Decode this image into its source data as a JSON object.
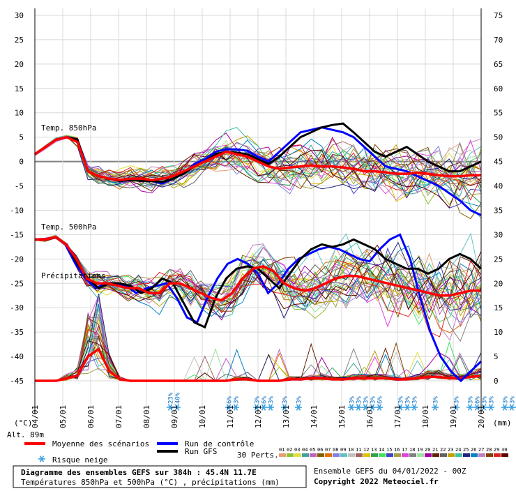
{
  "chart_data": {
    "type": "line",
    "left_axis_ticks": [
      30,
      25,
      20,
      15,
      10,
      5,
      0,
      -5,
      -10,
      -15,
      -20,
      -25,
      -30,
      -35,
      -40,
      -45
    ],
    "right_axis_ticks": [
      75,
      70,
      65,
      60,
      55,
      50,
      45,
      40,
      35,
      30,
      25,
      20,
      15,
      10,
      5,
      0
    ],
    "left_unit": "(°C)",
    "right_unit": "(mm)",
    "left_ylim": [
      -45,
      30
    ],
    "right_ylim": [
      0,
      75
    ],
    "x_dates": [
      "04/01",
      "05/01",
      "06/01",
      "07/01",
      "08/01",
      "09/01",
      "10/01",
      "11/01",
      "12/01",
      "13/01",
      "14/01",
      "15/01",
      "16/01",
      "17/01",
      "18/01",
      "19/01",
      "20/01"
    ],
    "panel_labels": {
      "t850": "Temp. 850hPa",
      "t500": "Temp. 500hPa",
      "precip": "Précipitations"
    },
    "t850_mean": [
      1.5,
      3,
      4.5,
      5,
      4,
      -2,
      -3,
      -3.5,
      -3.8,
      -3.5,
      -3.5,
      -3.8,
      -3.5,
      -3,
      -2,
      -1,
      0,
      1,
      2,
      1.5,
      1,
      0,
      -1,
      -1.5,
      -1.2,
      -1,
      -0.8,
      -1,
      -1,
      -1.2,
      -1.5,
      -2,
      -2,
      -2.2,
      -2.5,
      -2.5,
      -2.3,
      -2.5,
      -2.8,
      -3,
      -3,
      -2.8,
      -2.8
    ],
    "t850_control": [
      1.5,
      3,
      4.5,
      5,
      4.5,
      -2,
      -3,
      -3.5,
      -4,
      -3.8,
      -3.5,
      -4,
      -4.5,
      -3.5,
      -2.5,
      -0.5,
      0.5,
      2,
      2.5,
      2.5,
      2.2,
      1,
      0,
      2,
      4,
      6,
      6.5,
      7,
      6.5,
      6,
      5,
      3,
      1,
      -1,
      -1.5,
      -2,
      -3,
      -4,
      -5,
      -6.5,
      -8,
      -10,
      -11
    ],
    "t850_gfs": [
      1.5,
      3,
      4.5,
      5,
      4.5,
      -2,
      -3,
      -3.5,
      -4,
      -3.8,
      -4,
      -4,
      -4.2,
      -3.5,
      -2.5,
      -1,
      0,
      1.5,
      2,
      1.8,
      1.5,
      0.5,
      -0.5,
      1,
      3,
      5,
      6,
      7,
      7.5,
      7.8,
      6,
      4,
      2,
      1,
      2,
      3,
      1.5,
      0,
      -1,
      -2,
      -2,
      -1,
      0
    ],
    "t500_mean": [
      -16,
      -16,
      -15.5,
      -17,
      -20,
      -24,
      -25,
      -25,
      -25.5,
      -26,
      -26,
      -27,
      -27,
      -25,
      -25,
      -26,
      -27,
      -28,
      -28.5,
      -27,
      -24,
      -22,
      -21.5,
      -22.5,
      -25,
      -26,
      -26.5,
      -26,
      -25,
      -24,
      -23.5,
      -23.5,
      -24,
      -24.5,
      -25,
      -25.5,
      -26,
      -26.5,
      -27,
      -27.5,
      -27.5,
      -27,
      -26.5,
      -26.5
    ],
    "t500_control": [
      -16,
      -16,
      -15.5,
      -17,
      -21,
      -24,
      -26,
      -25,
      -25,
      -25.5,
      -27,
      -26,
      -25.5,
      -25,
      -28,
      -32,
      -33,
      -28,
      -24,
      -21,
      -20,
      -21,
      -23,
      -27,
      -25,
      -22,
      -20,
      -19,
      -18,
      -17.5,
      -18,
      -19,
      -20,
      -20.5,
      -18,
      -16,
      -15,
      -20,
      -28,
      -35,
      -40,
      -43,
      -45,
      -43,
      -41
    ],
    "t500_gfs": [
      -16,
      -16,
      -15.5,
      -17,
      -21,
      -24,
      -26,
      -25,
      -25,
      -25.5,
      -27,
      -26,
      -24,
      -25,
      -29,
      -33,
      -34,
      -28,
      -24,
      -22,
      -21.5,
      -22,
      -24,
      -26,
      -23,
      -20,
      -18,
      -17,
      -17.5,
      -17,
      -16,
      -17,
      -18,
      -20,
      -21,
      -22,
      -22,
      -23,
      -22,
      -20,
      -19,
      -20,
      -22
    ],
    "precip_mean": [
      0,
      0,
      0,
      0.5,
      1,
      5,
      6.5,
      2,
      0.3,
      0,
      0,
      0,
      0,
      0,
      0,
      0,
      0,
      0,
      0,
      0.3,
      0.3,
      0,
      0,
      0,
      0.3,
      0.3,
      0.5,
      0.5,
      0.3,
      0.3,
      0.5,
      0.5,
      0.5,
      0.5,
      0.3,
      0.3,
      0.5,
      0.8,
      0.8,
      0.5,
      0.5,
      0.8,
      1
    ],
    "snow_risk_markers": [
      {
        "x": 4.85,
        "label": "23%"
      },
      {
        "x": 5.1,
        "label": "40%"
      },
      {
        "x": 6.95,
        "label": "6%"
      },
      {
        "x": 7.2,
        "label": "3%"
      },
      {
        "x": 7.95,
        "label": "3%"
      },
      {
        "x": 8.2,
        "label": "6%"
      },
      {
        "x": 8.45,
        "label": "3%"
      },
      {
        "x": 8.95,
        "label": "3%"
      },
      {
        "x": 9.45,
        "label": "3%"
      },
      {
        "x": 11.35,
        "label": "3%"
      },
      {
        "x": 11.6,
        "label": "3%"
      },
      {
        "x": 11.85,
        "label": "3%"
      },
      {
        "x": 12.1,
        "label": "3%"
      },
      {
        "x": 12.35,
        "label": "6%"
      },
      {
        "x": 13.1,
        "label": "3%"
      },
      {
        "x": 13.35,
        "label": "3%"
      },
      {
        "x": 13.6,
        "label": "3%"
      },
      {
        "x": 14.35,
        "label": "3%"
      },
      {
        "x": 15.1,
        "label": "3%"
      },
      {
        "x": 15.6,
        "label": "3%"
      },
      {
        "x": 15.85,
        "label": "6%"
      },
      {
        "x": 16.1,
        "label": "3%"
      },
      {
        "x": 16.35,
        "label": "3%"
      },
      {
        "x": 16.85,
        "label": "3%"
      },
      {
        "x": 17.1,
        "label": "3%"
      },
      {
        "x": 17.35,
        "label": "3%"
      },
      {
        "x": 17.6,
        "label": "3%"
      },
      {
        "x": 18.35,
        "label": "3%"
      },
      {
        "x": 18.6,
        "label": "6%"
      }
    ],
    "alt_label": "Alt. 89m",
    "legend": {
      "mean": "Moyenne des scénarios",
      "control": "Run de contrôle",
      "gfs": "Run GFS",
      "snow": "Risque neige",
      "perts": "30 Perts."
    },
    "member_ids": [
      "01",
      "02",
      "03",
      "04",
      "05",
      "06",
      "07",
      "08",
      "09",
      "10",
      "11",
      "12",
      "13",
      "14",
      "15",
      "16",
      "17",
      "18",
      "19",
      "20",
      "21",
      "22",
      "23",
      "24",
      "25",
      "26",
      "27",
      "28",
      "29",
      "30"
    ],
    "member_colors": [
      "#e8a070",
      "#90c030",
      "#e0e040",
      "#40a0a0",
      "#c060c0",
      "#806000",
      "#e07000",
      "#8080e0",
      "#60c0c0",
      "#c0c0c0",
      "#a06060",
      "#e0c000",
      "#30a050",
      "#40e060",
      "#4040c0",
      "#a0a040",
      "#e040e0",
      "#808080",
      "#a0e0a0",
      "#a000a0",
      "#602000",
      "#606060",
      "#c0a000",
      "#40c0a0",
      "#202080",
      "#0080c0",
      "#c080c0",
      "#804000",
      "#e02020",
      "#600000"
    ],
    "colors": {
      "mean": "#ff0000",
      "control": "#0000ff",
      "gfs": "#000000"
    },
    "footer": {
      "title": "Diagramme des ensembles GEFS sur 384h : 45.4N 11.7E",
      "subtitle": "Températures 850hPa et 500hPa (°C) , précipitations (mm)",
      "run": "Ensemble GEFS du 04/01/2022 - 00Z",
      "copyright": "Copyright 2022 Meteociel.fr"
    }
  }
}
